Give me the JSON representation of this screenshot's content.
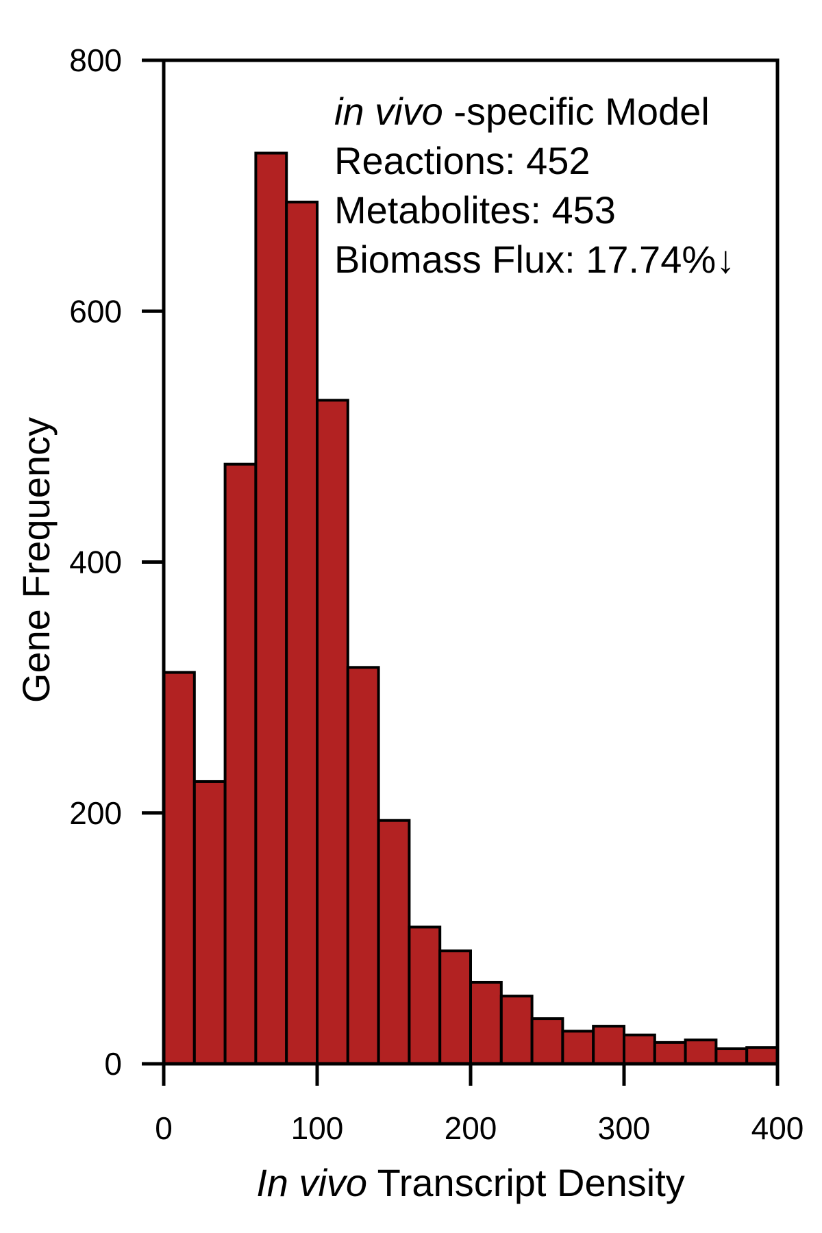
{
  "chart_data": {
    "type": "bar",
    "bin_edges": [
      0,
      20,
      40,
      60,
      80,
      100,
      120,
      140,
      160,
      180,
      200,
      220,
      240,
      260,
      280,
      300,
      320,
      340,
      360,
      380,
      400
    ],
    "values": [
      312,
      225,
      478,
      726,
      687,
      529,
      316,
      194,
      109,
      90,
      65,
      54,
      36,
      26,
      30,
      23,
      17,
      19,
      12,
      13
    ],
    "xlim": [
      0,
      400
    ],
    "ylim": [
      0,
      800
    ],
    "x_ticks": [
      0,
      100,
      200,
      300,
      400
    ],
    "y_ticks": [
      0,
      200,
      400,
      600,
      800
    ],
    "x_tick_labels": [
      "0",
      "100",
      "200",
      "300",
      "400"
    ],
    "y_tick_labels": [
      "0",
      "200",
      "400",
      "600",
      "800"
    ],
    "xlabel_italic": "In vivo",
    "xlabel_rest": " Transcript Density",
    "ylabel": "Gene Frequency",
    "annotation": {
      "line1_italic": "in vivo",
      "line1_rest": " -specific Model",
      "line2": "Reactions: 452",
      "line3": "Metabolites: 453",
      "line4": "Biomass Flux: 17.74%↓"
    },
    "bar_color": "#b22222",
    "edge_color": "#000000",
    "grid": false
  }
}
